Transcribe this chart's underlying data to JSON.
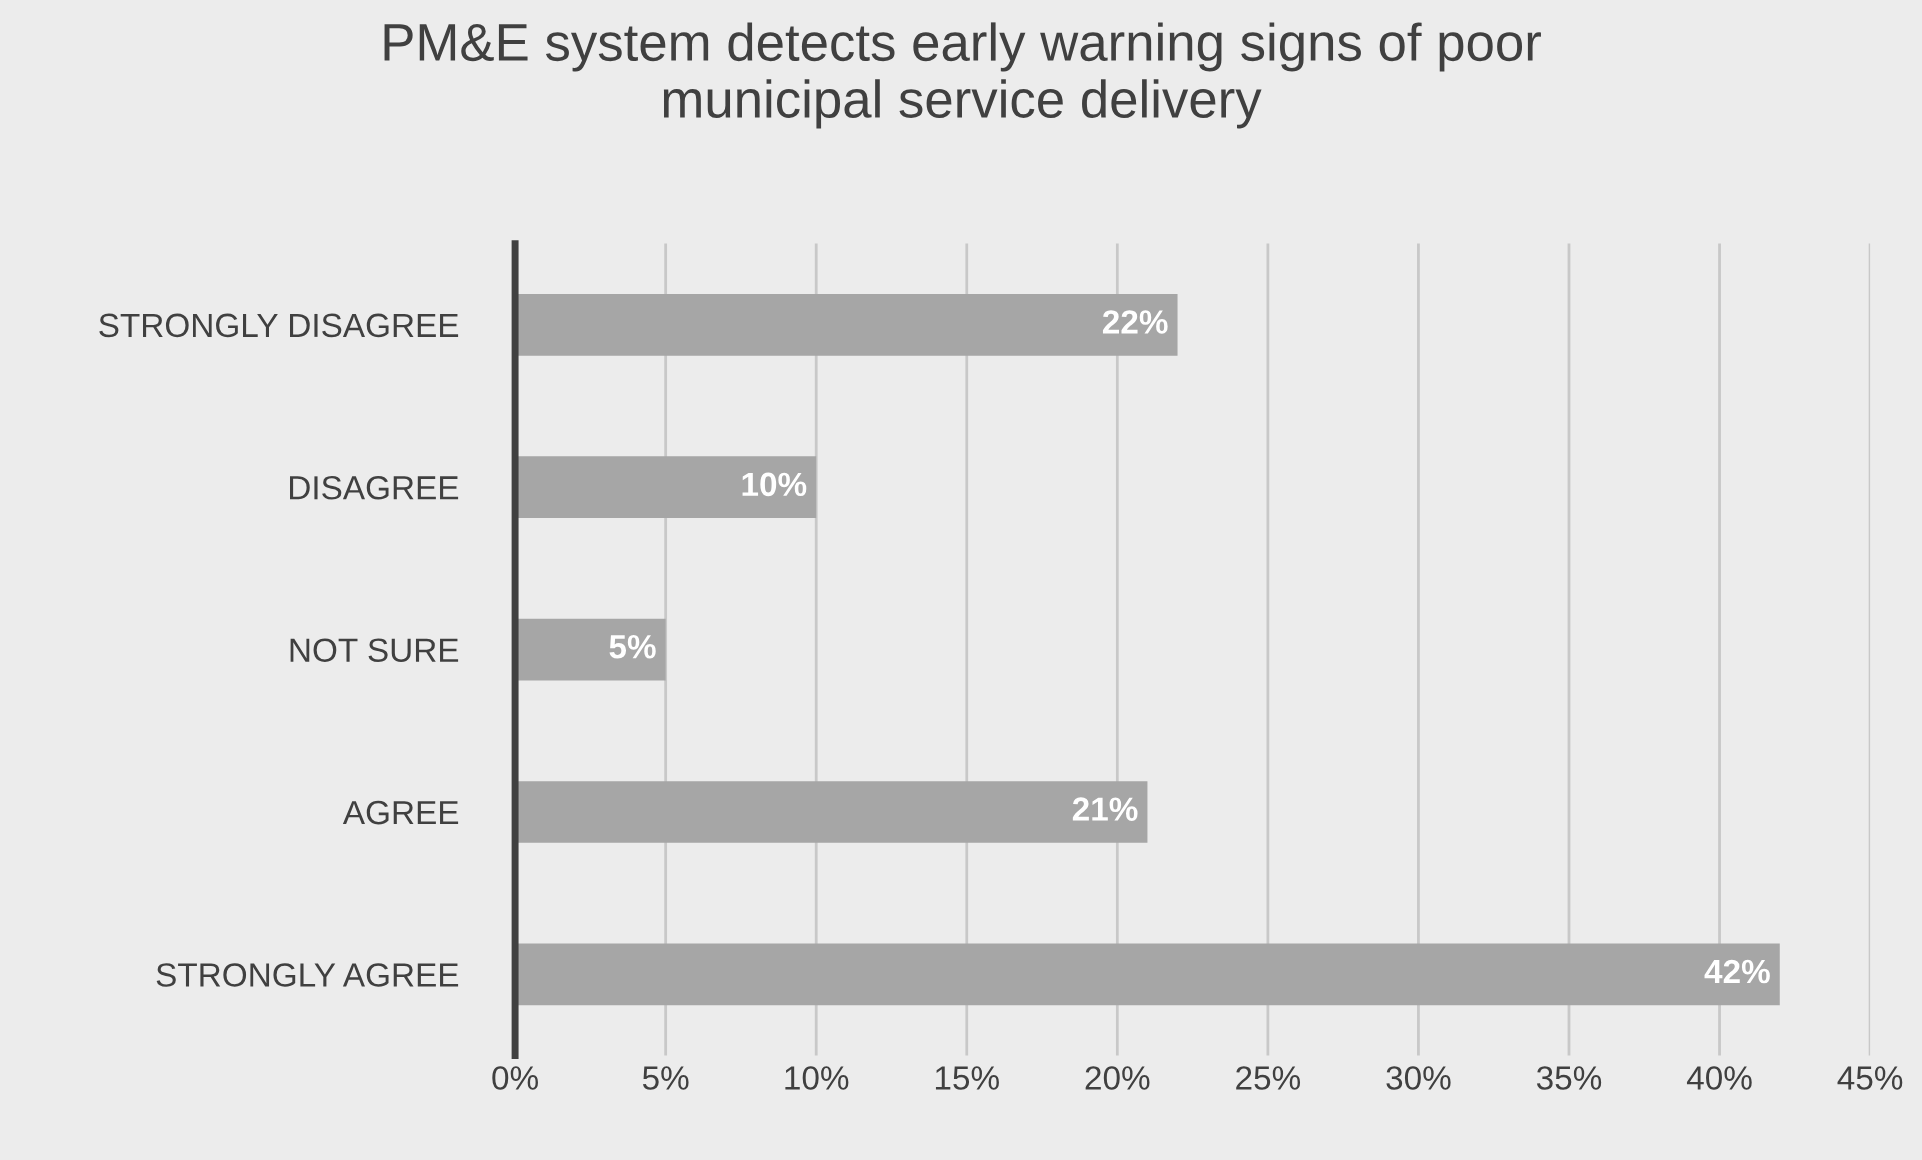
{
  "chart_data": {
    "type": "bar",
    "orientation": "horizontal",
    "title": "PM&E system detects early warning signs of poor\nmunicipal service delivery",
    "categories": [
      "STRONGLY DISAGREE",
      "DISAGREE",
      "NOT SURE",
      "AGREE",
      "STRONGLY AGREE"
    ],
    "values": [
      22,
      10,
      5,
      21,
      42
    ],
    "value_labels": [
      "22%",
      "10%",
      "5%",
      "21%",
      "42%"
    ],
    "color": "#a6a6a6",
    "xlim": [
      0,
      45
    ],
    "xticks": [
      {
        "value": 0,
        "label": "0%"
      },
      {
        "value": 5,
        "label": "5%"
      },
      {
        "value": 10,
        "label": "10%"
      },
      {
        "value": 15,
        "label": "15%"
      },
      {
        "value": 20,
        "label": "20%"
      },
      {
        "value": 25,
        "label": "25%"
      },
      {
        "value": 30,
        "label": "30%"
      },
      {
        "value": 35,
        "label": "35%"
      },
      {
        "value": 40,
        "label": "40%"
      },
      {
        "value": 45,
        "label": "45%"
      }
    ],
    "grid": "x"
  }
}
